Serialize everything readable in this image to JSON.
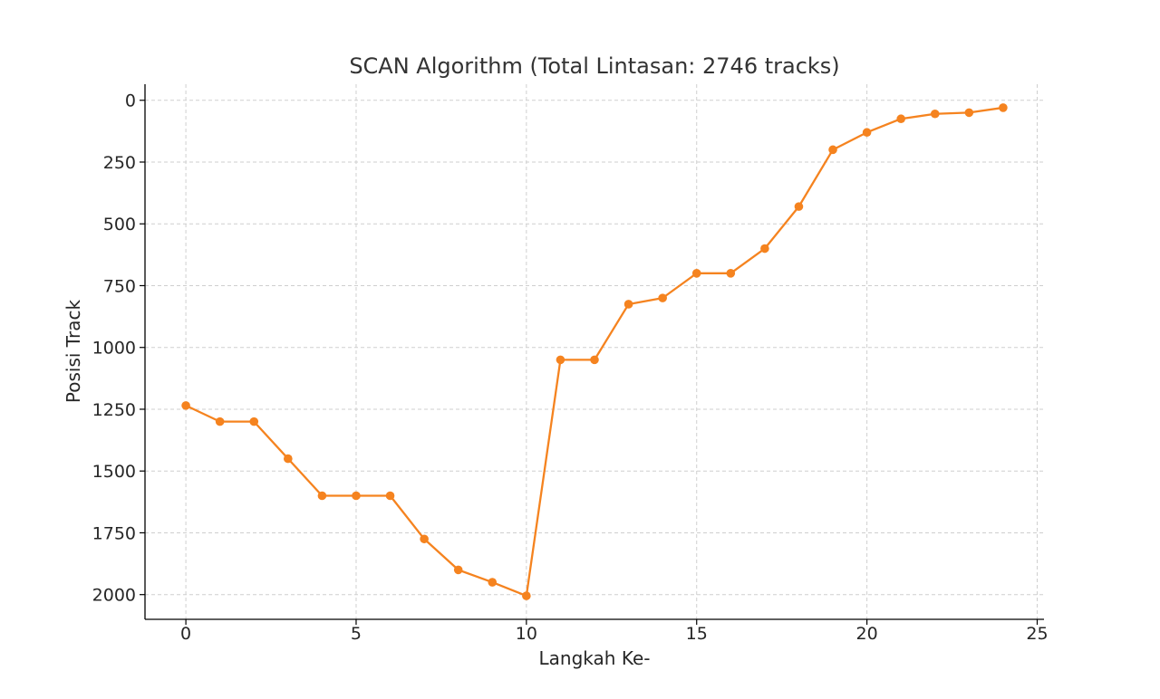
{
  "chart_data": {
    "type": "line",
    "title": "SCAN Algorithm (Total Lintasan: 2746 tracks)",
    "xlabel": "Langkah Ke-",
    "ylabel": "Posisi Track",
    "xlim": [
      -1.2,
      25.2
    ],
    "ylim": [
      2100,
      -65
    ],
    "y_inverted": true,
    "x_ticks": [
      0,
      5,
      10,
      15,
      20,
      25
    ],
    "y_ticks": [
      0,
      250,
      500,
      750,
      1000,
      1250,
      1500,
      1750,
      2000
    ],
    "grid": true,
    "color": "#f5831f",
    "series": [
      {
        "x": [
          0,
          1,
          2,
          3,
          4,
          5,
          6,
          7,
          8,
          9,
          10,
          11,
          12,
          13,
          14,
          15,
          16,
          17,
          18,
          19,
          20,
          21,
          22,
          23,
          24
        ],
        "values": [
          1235,
          1300,
          1300,
          1450,
          1600,
          1600,
          1600,
          1775,
          1900,
          1950,
          2005,
          1050,
          1050,
          825,
          800,
          700,
          700,
          600,
          430,
          200,
          130,
          75,
          55,
          50,
          30
        ]
      }
    ]
  }
}
